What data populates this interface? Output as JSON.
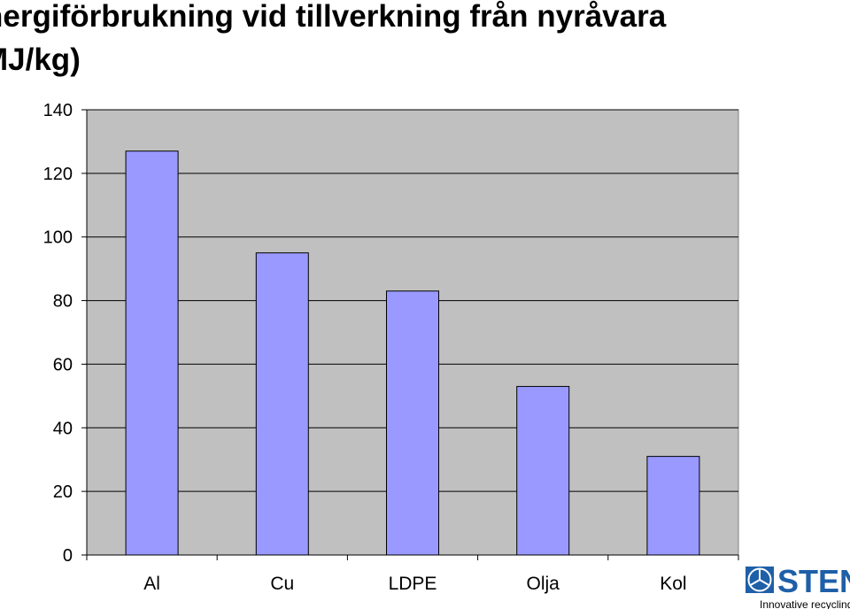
{
  "title_lines": [
    "nergiförbrukning vid tillverkning från nyråvara",
    "MJ/kg)"
  ],
  "chart_data": {
    "type": "bar",
    "categories": [
      "Al",
      "Cu",
      "LDPE",
      "Olja",
      "Kol"
    ],
    "values": [
      127,
      95,
      83,
      53,
      31
    ],
    "y_ticks": [
      "0",
      "20",
      "40",
      "60",
      "80",
      "100",
      "120",
      "140"
    ],
    "ylim": [
      0,
      140
    ],
    "grid": true,
    "colors": {
      "bar_fill": "#9999ff",
      "bar_stroke": "#000000",
      "plot_background": "#c0c0c0",
      "gridline": "#000000"
    }
  },
  "logo": {
    "wordmark": "STENA",
    "tagline": "Innovative recycling",
    "badge_letters": [
      "S",
      "A",
      "O"
    ],
    "colors": {
      "primary": "#1e5fa8"
    }
  }
}
